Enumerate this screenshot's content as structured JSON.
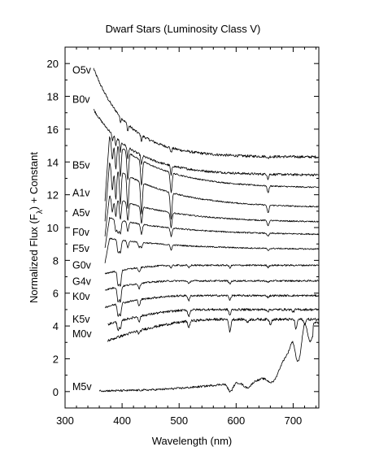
{
  "chart_data": {
    "type": "line",
    "title": "Dwarf Stars (Luminosity Class V)",
    "xlabel": "Wavelength (nm)",
    "ylabel_parts": [
      "Normalized Flux (F",
      "λ",
      ") + Constant"
    ],
    "xlim": [
      300,
      745
    ],
    "ylim": [
      -1,
      21
    ],
    "xticks": [
      300,
      400,
      500,
      600,
      700
    ],
    "yticks": [
      0,
      2,
      4,
      6,
      8,
      10,
      12,
      14,
      16,
      18,
      20
    ],
    "grid": false,
    "series": [
      {
        "name": "O5v",
        "start": 350,
        "shape": "hot",
        "level": 14.3,
        "amp": 5.4,
        "scale": 60,
        "noise": 0.08,
        "lines": [
          [
            397,
            0.3
          ],
          [
            410,
            0.4
          ],
          [
            434,
            0.35
          ],
          [
            486,
            0.3
          ],
          [
            656,
            0.15
          ]
        ]
      },
      {
        "name": "B0v",
        "start": 350,
        "shape": "hot",
        "level": 13.2,
        "amp": 4.0,
        "scale": 70,
        "noise": 0.07,
        "lines": [
          [
            383,
            0.4
          ],
          [
            389,
            0.5
          ],
          [
            397,
            0.6
          ],
          [
            410,
            0.7
          ],
          [
            434,
            0.6
          ],
          [
            486,
            0.6
          ],
          [
            656,
            0.3
          ]
        ]
      },
      {
        "name": "B5v",
        "start": 370,
        "shape": "peak",
        "level": 12.4,
        "amp": 2.6,
        "scale": 90,
        "noise": 0.04,
        "lines": [
          [
            383,
            1.2
          ],
          [
            389,
            1.6
          ],
          [
            397,
            1.8
          ],
          [
            410,
            1.7
          ],
          [
            434,
            1.5
          ],
          [
            486,
            1.2
          ],
          [
            656,
            0.4
          ]
        ]
      },
      {
        "name": "A1v",
        "start": 370,
        "shape": "peak",
        "level": 11.2,
        "amp": 2.3,
        "scale": 100,
        "noise": 0.04,
        "lines": [
          [
            383,
            1.5
          ],
          [
            389,
            1.9
          ],
          [
            397,
            2.0
          ],
          [
            410,
            2.0
          ],
          [
            434,
            1.9
          ],
          [
            486,
            1.6
          ],
          [
            656,
            0.5
          ]
        ]
      },
      {
        "name": "A5v",
        "start": 370,
        "shape": "peak",
        "level": 10.3,
        "amp": 1.4,
        "scale": 110,
        "noise": 0.04,
        "lines": [
          [
            383,
            0.9
          ],
          [
            389,
            1.1
          ],
          [
            397,
            1.2
          ],
          [
            410,
            1.1
          ],
          [
            434,
            1.0
          ],
          [
            486,
            0.9
          ],
          [
            656,
            0.3
          ]
        ]
      },
      {
        "name": "F0v",
        "start": 370,
        "shape": "peak",
        "level": 9.55,
        "amp": 0.9,
        "scale": 120,
        "noise": 0.04,
        "lines": [
          [
            389,
            0.7
          ],
          [
            393,
            0.8
          ],
          [
            397,
            0.8
          ],
          [
            410,
            0.6
          ],
          [
            434,
            0.6
          ],
          [
            486,
            0.5
          ],
          [
            656,
            0.2
          ]
        ]
      },
      {
        "name": "F5v",
        "start": 370,
        "shape": "peak",
        "level": 8.65,
        "amp": 0.6,
        "scale": 130,
        "noise": 0.04,
        "lines": [
          [
            393,
            0.8
          ],
          [
            397,
            0.8
          ],
          [
            410,
            0.4
          ],
          [
            430,
            0.3
          ],
          [
            434,
            0.3
          ],
          [
            486,
            0.3
          ],
          [
            656,
            0.15
          ]
        ]
      },
      {
        "name": "G0v",
        "start": 370,
        "shape": "rise",
        "level": 7.7,
        "amp": 0.5,
        "scale": 130,
        "noise": 0.05,
        "lines": [
          [
            393,
            0.9
          ],
          [
            397,
            0.9
          ],
          [
            430,
            0.3
          ],
          [
            486,
            0.15
          ],
          [
            517,
            0.15
          ],
          [
            589,
            0.15
          ],
          [
            656,
            0.12
          ]
        ]
      },
      {
        "name": "G4v",
        "start": 370,
        "shape": "rise",
        "level": 6.75,
        "amp": 0.55,
        "scale": 130,
        "noise": 0.05,
        "lines": [
          [
            393,
            0.9
          ],
          [
            397,
            0.9
          ],
          [
            430,
            0.3
          ],
          [
            517,
            0.2
          ],
          [
            589,
            0.2
          ],
          [
            656,
            0.1
          ]
        ]
      },
      {
        "name": "K0v",
        "start": 370,
        "shape": "rise",
        "level": 5.85,
        "amp": 0.7,
        "scale": 150,
        "noise": 0.06,
        "lines": [
          [
            393,
            0.7
          ],
          [
            397,
            0.7
          ],
          [
            430,
            0.35
          ],
          [
            517,
            0.3
          ],
          [
            589,
            0.25
          ],
          [
            656,
            0.1
          ]
        ]
      },
      {
        "name": "K5v",
        "start": 375,
        "shape": "rise",
        "level": 5.0,
        "amp": 0.9,
        "scale": 170,
        "noise": 0.07,
        "lines": [
          [
            393,
            0.5
          ],
          [
            397,
            0.5
          ],
          [
            430,
            0.3
          ],
          [
            517,
            0.4
          ],
          [
            589,
            0.35
          ],
          [
            656,
            0.1
          ],
          [
            700,
            0.15
          ]
        ]
      },
      {
        "name": "M0v",
        "start": 375,
        "shape": "rise",
        "level": 4.4,
        "amp": 1.3,
        "scale": 200,
        "noise": 0.08,
        "lines": [
          [
            430,
            0.2
          ],
          [
            517,
            0.4
          ],
          [
            589,
            0.8
          ],
          [
            620,
            0.2
          ],
          [
            660,
            0.3
          ],
          [
            705,
            0.6
          ],
          [
            720,
            0.3
          ]
        ]
      },
      {
        "name": "M5v",
        "start": 360,
        "shape": "mdwarf",
        "level": 0,
        "amp": 0,
        "scale": 1,
        "noise": 0.06,
        "lines": []
      }
    ],
    "series_label_y": [
      19.6,
      17.8,
      13.8,
      12.1,
      10.9,
      9.7,
      8.7,
      7.7,
      6.7,
      5.8,
      4.4,
      3.5,
      0.3
    ]
  }
}
